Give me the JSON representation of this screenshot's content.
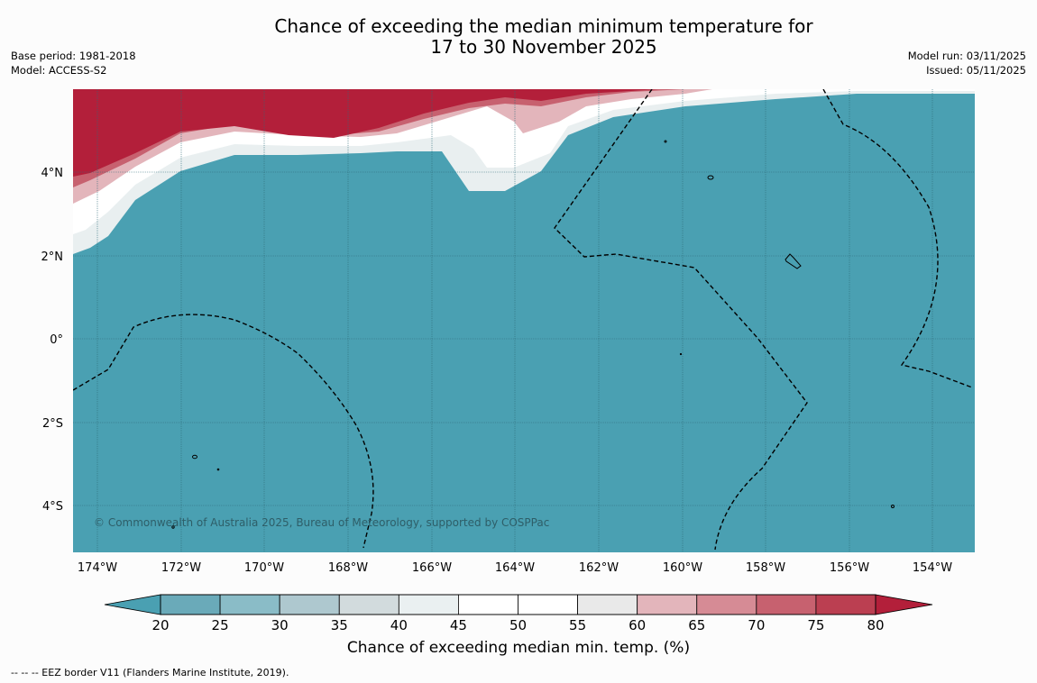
{
  "header": {
    "title_line1": "Chance of exceeding the median minimum temperature for",
    "title_line2": "17 to 30 November 2025",
    "base_period": "Base period: 1981-2018",
    "model": "Model: ACCESS-S2",
    "model_run": "Model run: 03/11/2025",
    "issued": "Issued: 05/11/2025"
  },
  "map": {
    "lon_labels": [
      "174°W",
      "172°W",
      "170°W",
      "168°W",
      "166°W",
      "164°W",
      "162°W",
      "160°W",
      "158°W",
      "156°W",
      "154°W"
    ],
    "lat_labels": [
      "4°N",
      "2°N",
      "0°",
      "2°S",
      "4°S"
    ],
    "copyright": "© Commonwealth of Australia 2025, Bureau of Meteorology, supported by COSPPac"
  },
  "colorbar": {
    "ticks": [
      "20",
      "25",
      "30",
      "35",
      "40",
      "45",
      "50",
      "55",
      "60",
      "65",
      "70",
      "75",
      "80"
    ],
    "title": "Chance of exceeding median min. temp. (%)",
    "colors": {
      "under": "#4aa0b2",
      "bins": [
        "#6aaab9",
        "#8abcc7",
        "#aec8cf",
        "#d2dbdd",
        "#eaf0f1",
        "#ffffff",
        "#ffffff",
        "#e9e9e9",
        "#e3b5bb",
        "#d68b95",
        "#c7616f",
        "#bb3f51"
      ],
      "over": "#b31f3a",
      "sea": "#4aa0b2",
      "warm": "#b31f3a"
    }
  },
  "footnote": "--  --  -- EEZ border V11 (Flanders Marine Institute, 2019)."
}
